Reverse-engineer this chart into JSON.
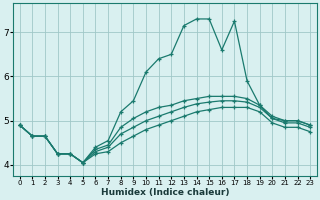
{
  "xlabel": "Humidex (Indice chaleur)",
  "x": [
    0,
    1,
    2,
    3,
    4,
    5,
    6,
    7,
    8,
    9,
    10,
    11,
    12,
    13,
    14,
    15,
    16,
    17,
    18,
    19,
    20,
    21,
    22,
    23
  ],
  "line_max": [
    4.9,
    4.65,
    4.65,
    4.25,
    4.25,
    4.05,
    4.4,
    4.55,
    5.2,
    5.45,
    6.1,
    6.4,
    6.5,
    7.15,
    7.3,
    7.3,
    6.6,
    7.25,
    5.9,
    5.35,
    5.05,
    5.0,
    5.0,
    4.9
  ],
  "line_avg": [
    4.9,
    4.65,
    4.65,
    4.25,
    4.25,
    4.05,
    4.35,
    4.45,
    4.85,
    5.05,
    5.2,
    5.3,
    5.35,
    5.45,
    5.5,
    5.55,
    5.55,
    5.55,
    5.5,
    5.35,
    5.1,
    5.0,
    5.0,
    4.9
  ],
  "line_med": [
    4.9,
    4.65,
    4.65,
    4.25,
    4.25,
    4.05,
    4.3,
    4.4,
    4.7,
    4.85,
    5.0,
    5.1,
    5.2,
    5.3,
    5.38,
    5.42,
    5.45,
    5.45,
    5.42,
    5.3,
    5.05,
    4.95,
    4.95,
    4.85
  ],
  "line_min": [
    4.9,
    4.65,
    4.65,
    4.25,
    4.25,
    4.05,
    4.25,
    4.3,
    4.5,
    4.65,
    4.8,
    4.9,
    5.0,
    5.1,
    5.2,
    5.25,
    5.3,
    5.3,
    5.3,
    5.2,
    4.95,
    4.85,
    4.85,
    4.75
  ],
  "line_color": "#1a7a6e",
  "bg_color": "#d9f0f0",
  "grid_color": "#a0c8c8",
  "ylim": [
    3.75,
    7.65
  ],
  "yticks": [
    4,
    5,
    6,
    7
  ],
  "xticks": [
    0,
    1,
    2,
    3,
    4,
    5,
    6,
    7,
    8,
    9,
    10,
    11,
    12,
    13,
    14,
    15,
    16,
    17,
    18,
    19,
    20,
    21,
    22,
    23
  ]
}
